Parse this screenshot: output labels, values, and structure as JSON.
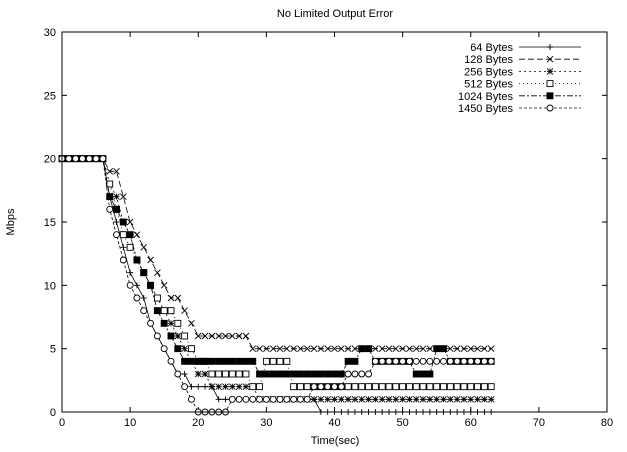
{
  "chart_data": {
    "type": "line",
    "title": "No Limited Output Error",
    "xlabel": "Time(sec)",
    "ylabel": "Mbps",
    "xlim": [
      0,
      80
    ],
    "ylim": [
      0,
      30
    ],
    "xticks": [
      0,
      10,
      20,
      30,
      40,
      50,
      60,
      70,
      80
    ],
    "yticks": [
      0,
      5,
      10,
      15,
      20,
      25,
      30
    ],
    "grid": false,
    "legend_position": "top-right",
    "series": [
      {
        "name": "64 Bytes",
        "marker": "plus",
        "dash": "none",
        "x": [
          0,
          1,
          2,
          3,
          4,
          5,
          6,
          7,
          8,
          9,
          10,
          11,
          12,
          13,
          14,
          15,
          16,
          17,
          18,
          19,
          20,
          21,
          22,
          23,
          24,
          25,
          26,
          27,
          28,
          29,
          30,
          31,
          32,
          33,
          34,
          35,
          36,
          37,
          38,
          39,
          40,
          41,
          42,
          43,
          44,
          45,
          46,
          47,
          48,
          49,
          50,
          51,
          52,
          53,
          54,
          55,
          56,
          57,
          58,
          59,
          60,
          61,
          62,
          63
        ],
        "values": [
          20,
          20,
          20,
          20,
          20,
          20,
          20,
          17,
          15,
          13,
          11,
          10,
          9,
          7,
          6,
          5,
          4,
          3,
          3,
          2,
          2,
          2,
          2,
          1,
          1,
          1,
          1,
          1,
          1,
          1,
          1,
          1,
          1,
          1,
          1,
          1,
          1,
          1,
          0,
          0,
          0,
          0,
          0,
          0,
          0,
          0,
          0,
          0,
          0,
          0,
          0,
          0,
          0,
          0,
          0,
          0,
          0,
          0,
          0,
          0,
          0,
          0,
          0,
          0
        ]
      },
      {
        "name": "128 Bytes",
        "marker": "x",
        "dash": "6,3",
        "x": [
          0,
          1,
          2,
          3,
          4,
          5,
          6,
          7,
          8,
          9,
          10,
          11,
          12,
          13,
          14,
          15,
          16,
          17,
          18,
          19,
          20,
          21,
          22,
          23,
          24,
          25,
          26,
          27,
          28,
          29,
          30,
          31,
          32,
          33,
          34,
          35,
          36,
          37,
          38,
          39,
          40,
          41,
          42,
          43,
          44,
          45,
          46,
          47,
          48,
          49,
          50,
          51,
          52,
          53,
          54,
          55,
          56,
          57,
          58,
          59,
          60,
          61,
          62,
          63
        ],
        "values": [
          20,
          20,
          20,
          20,
          20,
          20,
          20,
          19,
          19,
          17,
          15,
          14,
          13,
          12,
          11,
          10,
          9,
          9,
          8,
          7,
          6,
          6,
          6,
          6,
          6,
          6,
          6,
          6,
          5,
          5,
          5,
          5,
          5,
          5,
          5,
          5,
          5,
          5,
          5,
          5,
          5,
          5,
          5,
          5,
          5,
          5,
          5,
          5,
          5,
          5,
          5,
          5,
          5,
          5,
          5,
          5,
          5,
          5,
          5,
          5,
          5,
          5,
          5,
          5
        ]
      },
      {
        "name": "256 Bytes",
        "marker": "star",
        "dash": "2,3",
        "x": [
          0,
          1,
          2,
          3,
          4,
          5,
          6,
          7,
          8,
          9,
          10,
          11,
          12,
          13,
          14,
          15,
          16,
          17,
          18,
          19,
          20,
          21,
          22,
          23,
          24,
          25,
          26,
          27,
          28,
          29,
          30,
          31,
          32,
          33,
          34,
          35,
          36,
          37,
          38,
          39,
          40,
          41,
          42,
          43,
          44,
          45,
          46,
          47,
          48,
          49,
          50,
          51,
          52,
          53,
          54,
          55,
          56,
          57,
          58,
          59,
          60,
          61,
          62,
          63
        ],
        "values": [
          20,
          20,
          20,
          20,
          20,
          20,
          20,
          18,
          17,
          15,
          14,
          12,
          11,
          10,
          9,
          8,
          7,
          6,
          5,
          4,
          3,
          3,
          2,
          2,
          2,
          2,
          2,
          2,
          2,
          1,
          1,
          1,
          1,
          1,
          1,
          1,
          1,
          1,
          1,
          1,
          1,
          1,
          1,
          1,
          1,
          1,
          1,
          1,
          1,
          1,
          1,
          1,
          1,
          1,
          1,
          1,
          1,
          1,
          1,
          1,
          1,
          1,
          1,
          1
        ]
      },
      {
        "name": "512 Bytes",
        "marker": "square-open",
        "dash": "1,3",
        "x": [
          0,
          1,
          2,
          3,
          4,
          5,
          6,
          7,
          8,
          9,
          10,
          11,
          12,
          13,
          14,
          15,
          16,
          17,
          18,
          19,
          20,
          21,
          22,
          23,
          24,
          25,
          26,
          27,
          28,
          29,
          30,
          31,
          32,
          33,
          34,
          35,
          36,
          37,
          38,
          39,
          40,
          41,
          42,
          43,
          44,
          45,
          46,
          47,
          48,
          49,
          50,
          51,
          52,
          53,
          54,
          55,
          56,
          57,
          58,
          59,
          60,
          61,
          62,
          63
        ],
        "values": [
          20,
          20,
          20,
          20,
          20,
          20,
          20,
          18,
          16,
          14,
          13,
          12,
          11,
          10,
          9,
          8,
          8,
          7,
          6,
          5,
          4,
          4,
          3,
          3,
          3,
          3,
          3,
          3,
          2,
          2,
          4,
          4,
          4,
          4,
          2,
          2,
          2,
          2,
          2,
          2,
          2,
          2,
          2,
          2,
          2,
          2,
          2,
          2,
          2,
          2,
          2,
          2,
          2,
          2,
          2,
          2,
          2,
          2,
          2,
          2,
          2,
          2,
          2,
          2
        ]
      },
      {
        "name": "1024 Bytes",
        "marker": "square-filled",
        "dash": "6,2,2,2",
        "x": [
          0,
          1,
          2,
          3,
          4,
          5,
          6,
          7,
          8,
          9,
          10,
          11,
          12,
          13,
          14,
          15,
          16,
          17,
          18,
          19,
          20,
          21,
          22,
          23,
          24,
          25,
          26,
          27,
          28,
          29,
          30,
          31,
          32,
          33,
          34,
          35,
          36,
          37,
          38,
          39,
          40,
          41,
          42,
          43,
          44,
          45,
          46,
          47,
          48,
          49,
          50,
          51,
          52,
          53,
          54,
          55,
          56,
          57,
          58,
          59,
          60,
          61,
          62,
          63
        ],
        "values": [
          20,
          20,
          20,
          20,
          20,
          20,
          20,
          17,
          16,
          15,
          14,
          12,
          11,
          10,
          8,
          7,
          6,
          5,
          4,
          4,
          4,
          4,
          4,
          4,
          4,
          4,
          4,
          4,
          4,
          3,
          3,
          3,
          3,
          3,
          3,
          3,
          3,
          3,
          3,
          3,
          3,
          3,
          4,
          4,
          5,
          5,
          4,
          4,
          4,
          4,
          4,
          4,
          3,
          3,
          3,
          5,
          5,
          4,
          4,
          4,
          4,
          4,
          4,
          4
        ]
      },
      {
        "name": "1450 Bytes",
        "marker": "circle-open",
        "dash": "3,2",
        "x": [
          0,
          1,
          2,
          3,
          4,
          5,
          6,
          7,
          8,
          9,
          10,
          11,
          12,
          13,
          14,
          15,
          16,
          17,
          18,
          19,
          20,
          21,
          22,
          23,
          24,
          25,
          26,
          27,
          28,
          29,
          30,
          31,
          32,
          33,
          34,
          35,
          36,
          37,
          38,
          39,
          40,
          41,
          42,
          43,
          44,
          45,
          46,
          47,
          48,
          49,
          50,
          51,
          52,
          53,
          54,
          55,
          56,
          57,
          58,
          59,
          60,
          61,
          62,
          63
        ],
        "values": [
          20,
          20,
          20,
          20,
          20,
          20,
          20,
          16,
          14,
          12,
          10,
          9,
          8,
          7,
          6,
          5,
          4,
          3,
          2,
          1,
          0,
          0,
          0,
          0,
          0,
          1,
          1,
          1,
          1,
          1,
          1,
          1,
          1,
          1,
          1,
          1,
          1,
          2,
          2,
          2,
          2,
          2,
          3,
          3,
          3,
          3,
          4,
          4,
          4,
          4,
          4,
          4,
          4,
          4,
          4,
          4,
          4,
          4,
          4,
          4,
          4,
          4,
          4,
          4
        ]
      }
    ]
  }
}
